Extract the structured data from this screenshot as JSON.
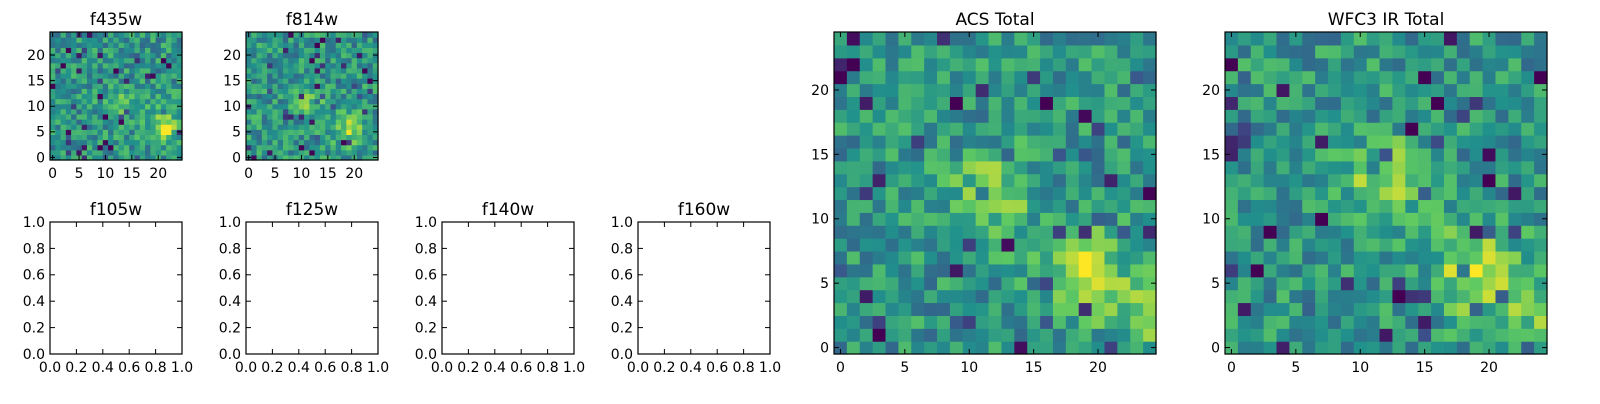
{
  "figure": {
    "background": "#ffffff",
    "colormap": "viridis",
    "colormap_stops": [
      "#440154",
      "#3b528b",
      "#21918c",
      "#5ec962",
      "#fde725"
    ]
  },
  "chart_data": [
    {
      "id": "f435w",
      "type": "heatmap",
      "title": "f435w",
      "xlabel": "",
      "ylabel": "",
      "xlim": [
        -0.5,
        24.5
      ],
      "ylim": [
        -0.5,
        24.5
      ],
      "xticks": [
        0,
        5,
        10,
        15,
        20
      ],
      "yticks": [
        0,
        5,
        10,
        15,
        20
      ],
      "grid": false,
      "image_size": [
        25,
        25
      ],
      "features": [
        {
          "x": 13,
          "y": 11,
          "amplitude": 0.18
        },
        {
          "x": 21,
          "y": 6,
          "amplitude": 0.35
        }
      ]
    },
    {
      "id": "f814w",
      "type": "heatmap",
      "title": "f814w",
      "xlabel": "",
      "ylabel": "",
      "xlim": [
        -0.5,
        24.5
      ],
      "ylim": [
        -0.5,
        24.5
      ],
      "xticks": [
        0,
        5,
        10,
        15,
        20
      ],
      "yticks": [
        0,
        5,
        10,
        15,
        20
      ],
      "grid": false,
      "image_size": [
        25,
        25
      ],
      "features": [
        {
          "x": 12,
          "y": 11,
          "amplitude": 0.2
        },
        {
          "x": 19,
          "y": 6,
          "amplitude": 0.32
        }
      ]
    },
    {
      "id": "f105w",
      "type": "empty",
      "title": "f105w",
      "xlim": [
        0,
        1
      ],
      "ylim": [
        0,
        1
      ],
      "xticks": [
        "0.0",
        "0.2",
        "0.4",
        "0.6",
        "0.8",
        "1.0"
      ],
      "yticks": [
        "0.0",
        "0.2",
        "0.4",
        "0.6",
        "0.8",
        "1.0"
      ]
    },
    {
      "id": "f125w",
      "type": "empty",
      "title": "f125w",
      "xlim": [
        0,
        1
      ],
      "ylim": [
        0,
        1
      ],
      "xticks": [
        "0.0",
        "0.2",
        "0.4",
        "0.6",
        "0.8",
        "1.0"
      ],
      "yticks": [
        "0.0",
        "0.2",
        "0.4",
        "0.6",
        "0.8",
        "1.0"
      ]
    },
    {
      "id": "f140w",
      "type": "empty",
      "title": "f140w",
      "xlim": [
        0,
        1
      ],
      "ylim": [
        0,
        1
      ],
      "xticks": [
        "0.0",
        "0.2",
        "0.4",
        "0.6",
        "0.8",
        "1.0"
      ],
      "yticks": [
        "0.0",
        "0.2",
        "0.4",
        "0.6",
        "0.8",
        "1.0"
      ]
    },
    {
      "id": "f160w",
      "type": "empty",
      "title": "f160w",
      "xlim": [
        0,
        1
      ],
      "ylim": [
        0,
        1
      ],
      "xticks": [
        "0.0",
        "0.2",
        "0.4",
        "0.6",
        "0.8",
        "1.0"
      ],
      "yticks": [
        "0.0",
        "0.2",
        "0.4",
        "0.6",
        "0.8",
        "1.0"
      ]
    },
    {
      "id": "acs-total",
      "type": "heatmap",
      "title": "ACS Total",
      "xlabel": "",
      "ylabel": "",
      "xlim": [
        -0.5,
        24.5
      ],
      "ylim": [
        -0.5,
        24.5
      ],
      "xticks": [
        0,
        5,
        10,
        15,
        20
      ],
      "yticks": [
        0,
        5,
        10,
        15,
        20
      ],
      "grid": false,
      "image_size": [
        25,
        25
      ],
      "features": [
        {
          "x": 12,
          "y": 12,
          "amplitude": 0.3
        },
        {
          "x": 19,
          "y": 6,
          "amplitude": 0.42
        },
        {
          "x": 24,
          "y": 2,
          "amplitude": 0.22
        }
      ]
    },
    {
      "id": "wfc3-ir-total",
      "type": "heatmap",
      "title": "WFC3 IR Total",
      "xlabel": "",
      "ylabel": "",
      "xlim": [
        -0.5,
        24.5
      ],
      "ylim": [
        -0.5,
        24.5
      ],
      "xticks": [
        0,
        5,
        10,
        15,
        20
      ],
      "yticks": [
        0,
        5,
        10,
        15,
        20
      ],
      "grid": false,
      "image_size": [
        25,
        25
      ],
      "features": [
        {
          "x": 12,
          "y": 13,
          "amplitude": 0.3
        },
        {
          "x": 19,
          "y": 6,
          "amplitude": 0.4
        },
        {
          "x": 24,
          "y": 3,
          "amplitude": 0.22
        }
      ]
    }
  ]
}
